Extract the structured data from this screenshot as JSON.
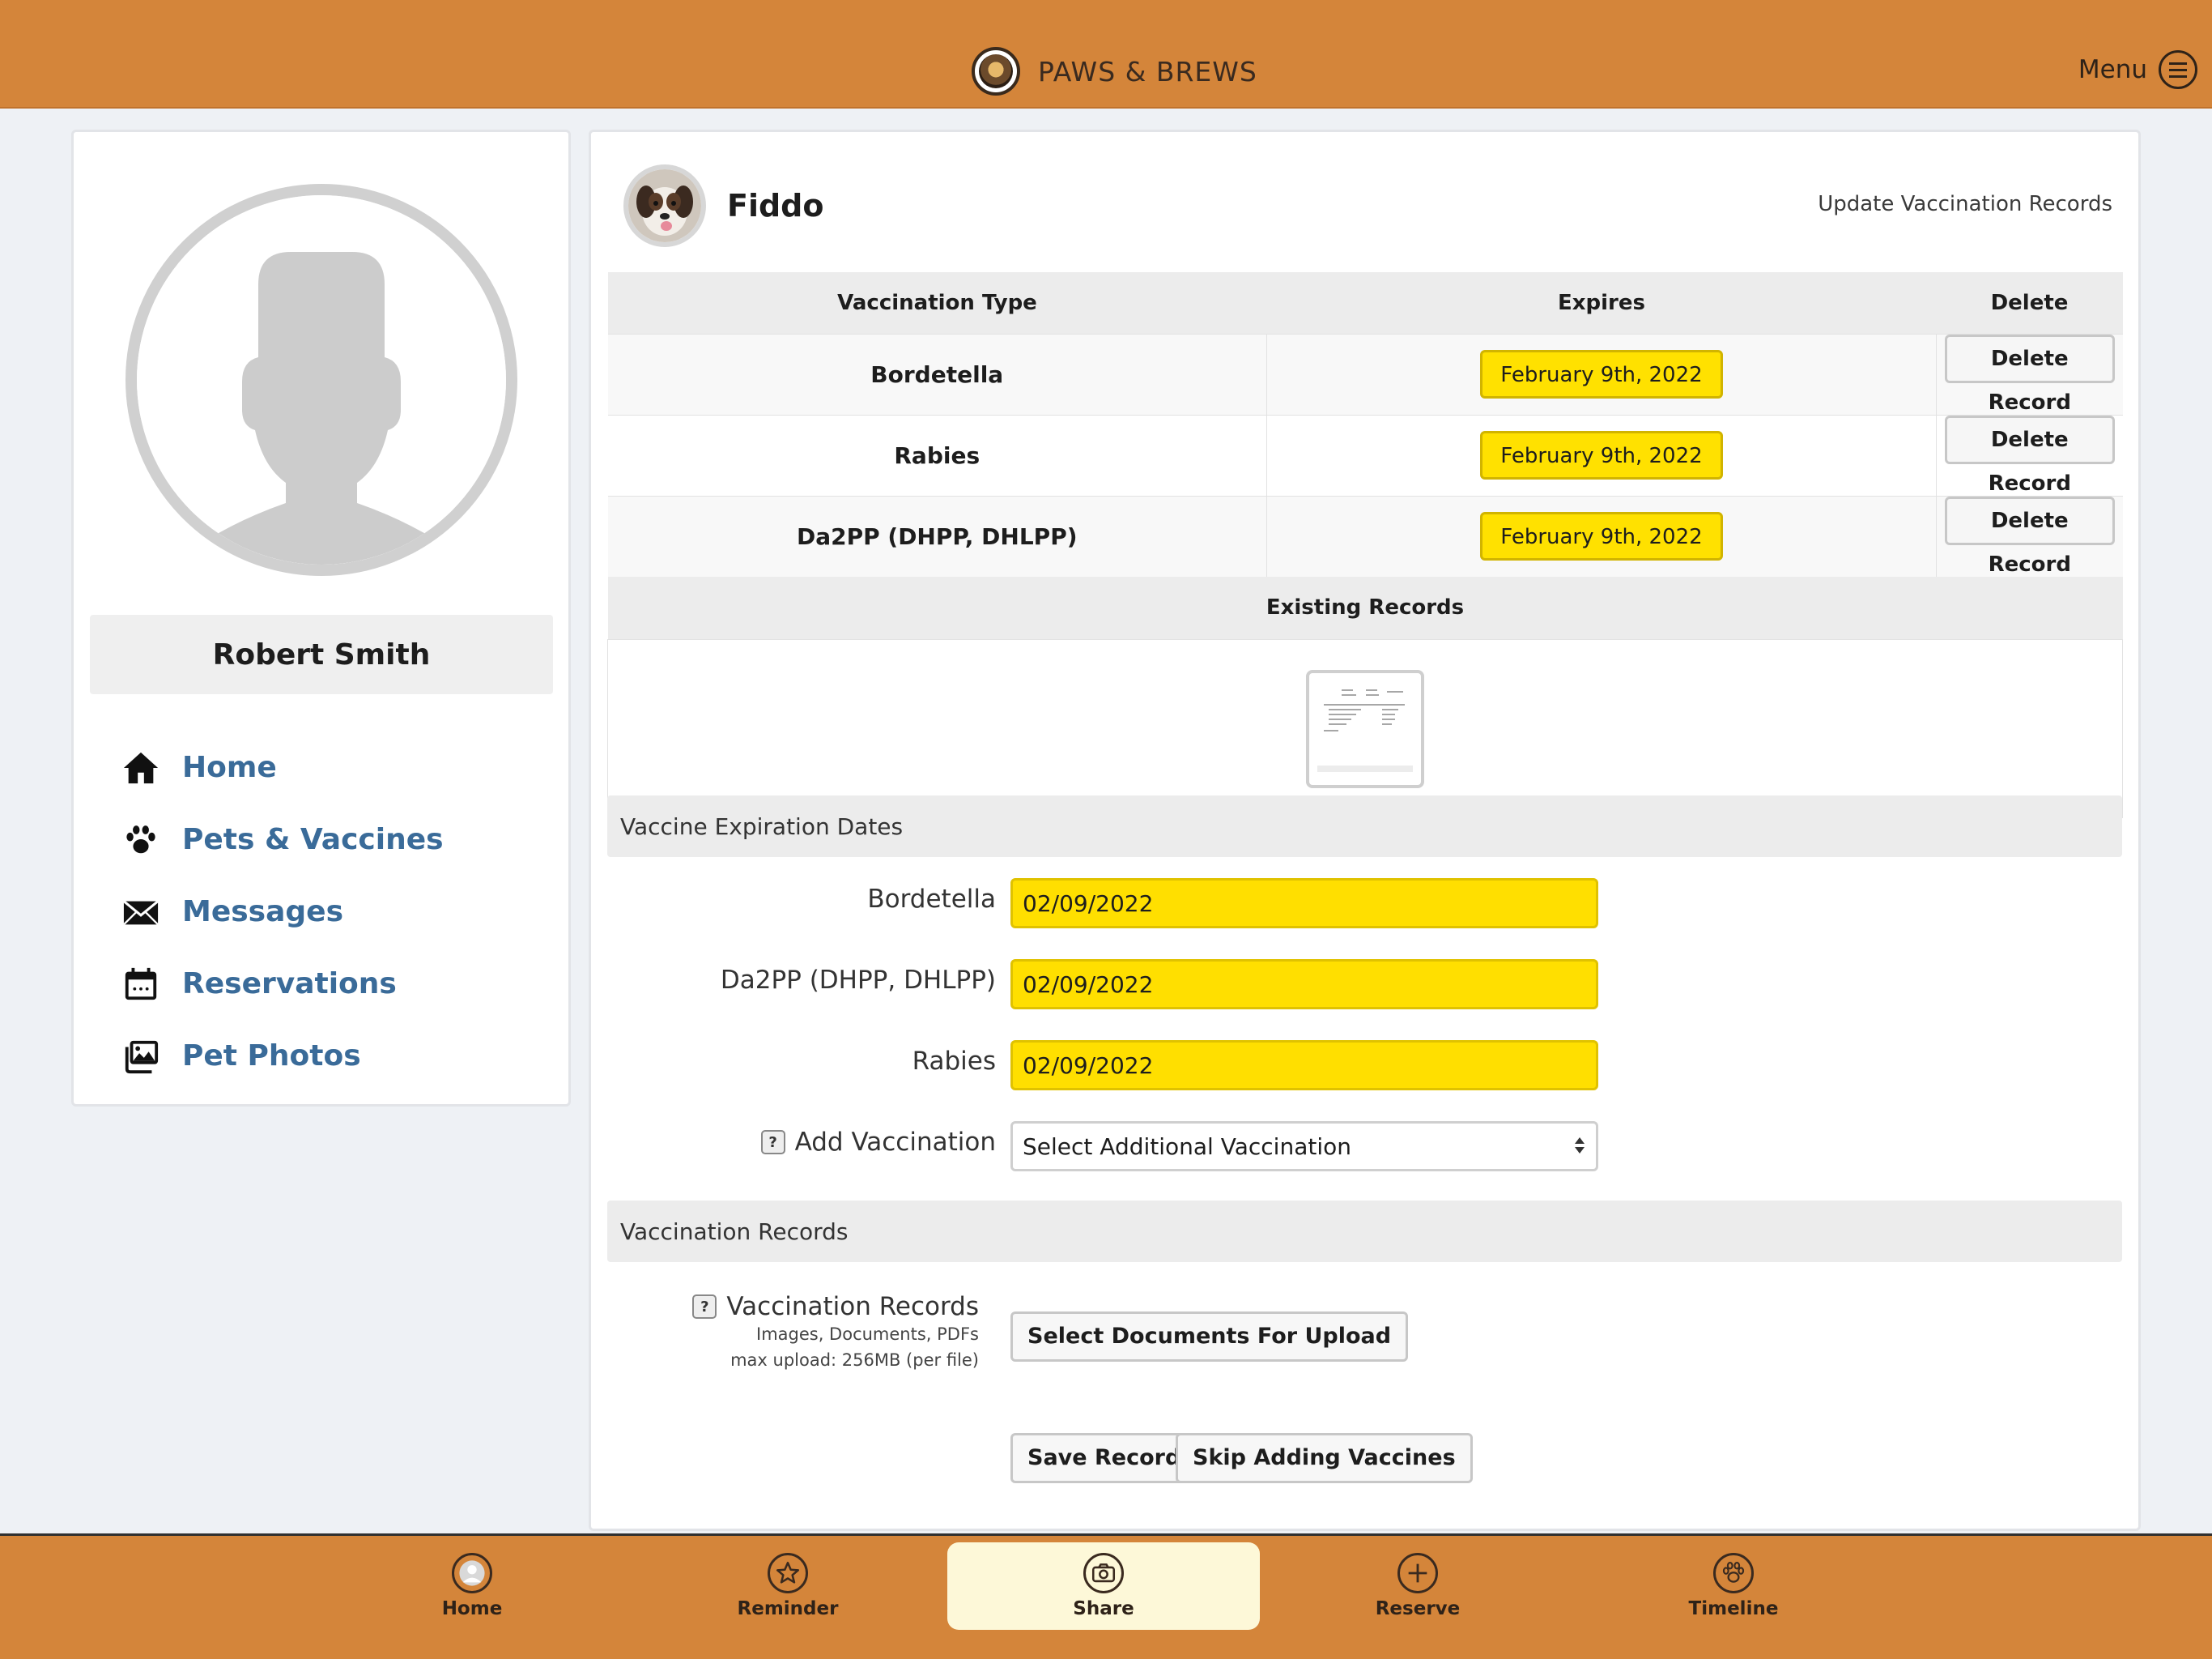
{
  "header": {
    "brand": "PAWS & BREWS",
    "menu_label": "Menu"
  },
  "sidebar": {
    "user_name": "Robert Smith",
    "items": [
      {
        "label": "Home",
        "icon": "home-icon"
      },
      {
        "label": "Pets & Vaccines",
        "icon": "paw-icon"
      },
      {
        "label": "Messages",
        "icon": "envelope-icon"
      },
      {
        "label": "Reservations",
        "icon": "calendar-icon"
      },
      {
        "label": "Pet Photos",
        "icon": "photos-icon"
      }
    ]
  },
  "main": {
    "pet_name": "Fiddo",
    "update_link": "Update Vaccination Records",
    "table": {
      "headers": [
        "Vaccination Type",
        "Expires",
        "Delete"
      ],
      "rows": [
        {
          "type": "Bordetella",
          "expires": "February 9th, 2022",
          "delete_label": "Delete Record"
        },
        {
          "type": "Rabies",
          "expires": "February 9th, 2022",
          "delete_label": "Delete Record"
        },
        {
          "type": "Da2PP (DHPP, DHLPP)",
          "expires": "February 9th, 2022",
          "delete_label": "Delete Record"
        }
      ],
      "existing_records_label": "Existing Records"
    },
    "expiration_section": {
      "title": "Vaccine Expiration Dates",
      "fields": [
        {
          "label": "Bordetella",
          "value": "02/09/2022"
        },
        {
          "label": "Da2PP (DHPP, DHLPP)",
          "value": "02/09/2022"
        },
        {
          "label": "Rabies",
          "value": "02/09/2022"
        }
      ],
      "add_vaccination_label": "Add Vaccination",
      "add_vaccination_select": "Select Additional Vaccination"
    },
    "records_section": {
      "title": "Vaccination Records",
      "label": "Vaccination Records",
      "hint_line1": "Images, Documents, PDFs",
      "hint_line2": "max upload: 256MB (per file)",
      "upload_button": "Select Documents For Upload"
    },
    "actions": {
      "save": "Save Record",
      "skip": "Skip Adding Vaccines"
    }
  },
  "tabbar": {
    "tabs": [
      {
        "label": "Home",
        "icon": "profile-icon",
        "active": false
      },
      {
        "label": "Reminder",
        "icon": "star-icon",
        "active": false
      },
      {
        "label": "Share",
        "icon": "camera-icon",
        "active": true
      },
      {
        "label": "Reserve",
        "icon": "plus-icon",
        "active": false
      },
      {
        "label": "Timeline",
        "icon": "paw-icon",
        "active": false
      }
    ]
  },
  "colors": {
    "brand_orange": "#d4853a",
    "date_yellow": "#ffdf00",
    "nav_link": "#3a6b99",
    "active_tab": "#fdf8d8"
  }
}
